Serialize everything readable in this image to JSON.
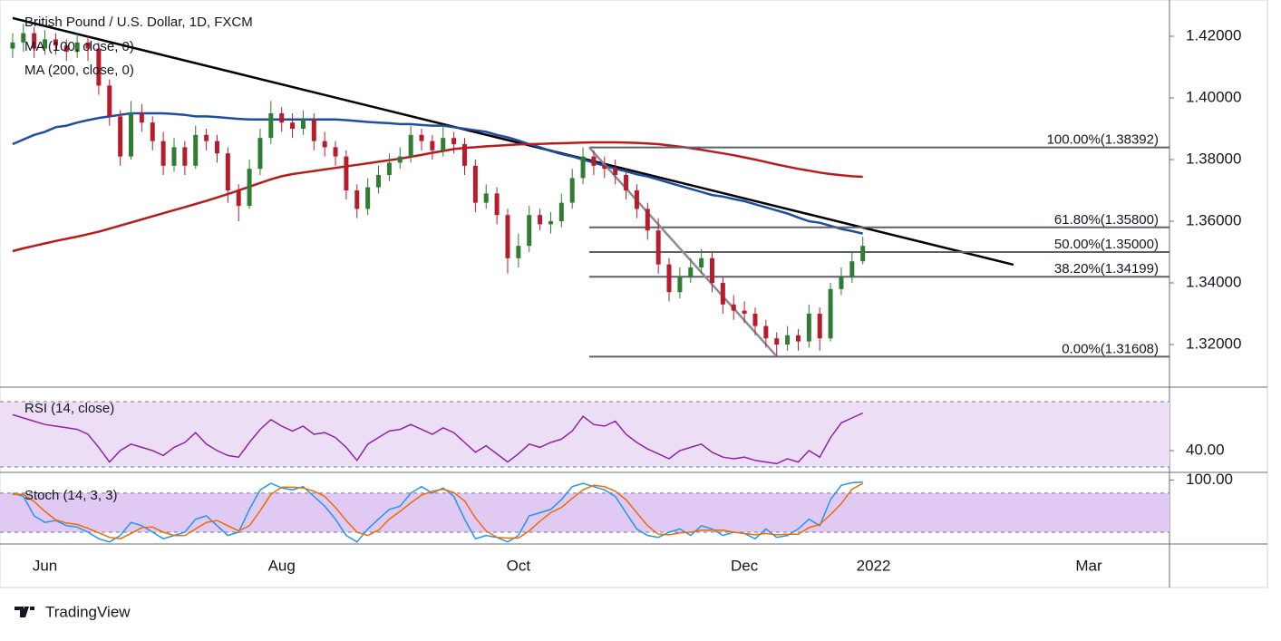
{
  "header": {
    "title": "British Pound / U.S. Dollar, 1D, FXCM"
  },
  "chart_data": [
    {
      "type": "candlestick",
      "categories": [
        null,
        null,
        null,
        "Jun",
        null,
        null,
        null,
        null,
        null,
        null,
        null,
        null,
        null,
        null,
        null,
        null,
        null,
        null,
        null,
        null,
        null,
        null,
        null,
        null,
        null,
        "Aug",
        null,
        null,
        null,
        null,
        null,
        null,
        null,
        null,
        null,
        null,
        null,
        null,
        null,
        null,
        null,
        null,
        null,
        null,
        null,
        null,
        null,
        "Oct",
        null,
        null,
        null,
        null,
        null,
        null,
        null,
        null,
        null,
        null,
        null,
        null,
        null,
        null,
        null,
        null,
        null,
        null,
        null,
        null,
        "Dec",
        null,
        null,
        null,
        null,
        null,
        null,
        null,
        null,
        null,
        null,
        null,
        "2022",
        null,
        null,
        null,
        null,
        null,
        null,
        null,
        null,
        null,
        null,
        null,
        null,
        null,
        null,
        null,
        null,
        null,
        null,
        null,
        "Mar",
        null,
        null,
        null,
        null,
        null,
        null,
        null
      ],
      "open": [
        1.416,
        1.418,
        1.421,
        1.416,
        1.419,
        1.417,
        1.415,
        1.418,
        1.416,
        1.404,
        1.394,
        1.381,
        1.395,
        1.392,
        1.386,
        1.378,
        1.384,
        1.378,
        1.388,
        1.386,
        1.382,
        1.37,
        1.365,
        1.377,
        1.387,
        1.395,
        1.392,
        1.39,
        1.393,
        1.386,
        1.384,
        1.381,
        1.37,
        1.364,
        1.371,
        1.375,
        1.379,
        1.381,
        1.388,
        1.386,
        1.383,
        1.387,
        1.385,
        1.378,
        1.366,
        1.369,
        1.362,
        1.348,
        1.352,
        1.362,
        1.359,
        1.36,
        1.366,
        1.374,
        1.381,
        1.378,
        1.377,
        1.375,
        1.37,
        1.364,
        1.357,
        1.346,
        1.337,
        1.342,
        1.345,
        1.348,
        1.34,
        1.333,
        1.331,
        1.33,
        1.326,
        1.322,
        1.32,
        1.323,
        1.321,
        1.33,
        1.322,
        1.338,
        1.342,
        1.347,
        null,
        null,
        null,
        null,
        null,
        null,
        null,
        null,
        null,
        null,
        null,
        null,
        null,
        null,
        null,
        null,
        null,
        null,
        null,
        null,
        null,
        null,
        null,
        null,
        null,
        null,
        null,
        null
      ],
      "high": [
        1.421,
        1.424,
        1.423,
        1.422,
        1.421,
        1.419,
        1.421,
        1.42,
        1.418,
        1.406,
        1.396,
        1.399,
        1.398,
        1.394,
        1.389,
        1.387,
        1.386,
        1.391,
        1.39,
        1.388,
        1.384,
        1.372,
        1.38,
        1.39,
        1.399,
        1.397,
        1.395,
        1.396,
        1.395,
        1.389,
        1.386,
        1.383,
        1.372,
        1.374,
        1.378,
        1.382,
        1.384,
        1.391,
        1.39,
        1.388,
        1.391,
        1.389,
        1.387,
        1.38,
        1.372,
        1.371,
        1.364,
        1.356,
        1.365,
        1.364,
        1.363,
        1.369,
        1.377,
        1.384,
        1.383,
        1.381,
        1.38,
        1.377,
        1.372,
        1.366,
        1.361,
        1.348,
        1.345,
        1.348,
        1.351,
        1.35,
        1.342,
        1.336,
        1.334,
        1.332,
        1.328,
        1.324,
        1.326,
        1.325,
        1.333,
        1.332,
        1.34,
        1.345,
        1.35,
        1.355,
        null,
        null,
        null,
        null,
        null,
        null,
        null,
        null,
        null,
        null,
        null,
        null,
        null,
        null,
        null,
        null,
        null,
        null,
        null,
        null,
        null,
        null,
        null,
        null,
        null,
        null,
        null,
        null
      ],
      "low": [
        1.413,
        1.415,
        1.413,
        1.414,
        1.414,
        1.412,
        1.413,
        1.412,
        1.401,
        1.391,
        1.378,
        1.38,
        1.389,
        1.383,
        1.375,
        1.376,
        1.375,
        1.377,
        1.383,
        1.379,
        1.366,
        1.36,
        1.364,
        1.375,
        1.385,
        1.389,
        1.387,
        1.388,
        1.383,
        1.381,
        1.378,
        1.367,
        1.361,
        1.362,
        1.369,
        1.373,
        1.377,
        1.379,
        1.383,
        1.38,
        1.381,
        1.382,
        1.375,
        1.363,
        1.364,
        1.359,
        1.343,
        1.345,
        1.35,
        1.357,
        1.356,
        1.358,
        1.364,
        1.372,
        1.375,
        1.374,
        1.372,
        1.367,
        1.361,
        1.354,
        1.343,
        1.334,
        1.335,
        1.34,
        1.343,
        1.337,
        1.33,
        1.328,
        1.327,
        1.323,
        1.319,
        1.316,
        1.318,
        1.318,
        1.319,
        1.318,
        1.321,
        1.336,
        1.34,
        1.346,
        null,
        null,
        null,
        null,
        null,
        null,
        null,
        null,
        null,
        null,
        null,
        null,
        null,
        null,
        null,
        null,
        null,
        null,
        null,
        null,
        null,
        null,
        null,
        null,
        null,
        null,
        null,
        null
      ],
      "close": [
        1.418,
        1.421,
        1.416,
        1.419,
        1.417,
        1.415,
        1.418,
        1.416,
        1.404,
        1.394,
        1.381,
        1.395,
        1.392,
        1.386,
        1.378,
        1.384,
        1.378,
        1.388,
        1.386,
        1.382,
        1.37,
        1.365,
        1.377,
        1.387,
        1.395,
        1.392,
        1.39,
        1.393,
        1.386,
        1.384,
        1.381,
        1.37,
        1.364,
        1.371,
        1.375,
        1.379,
        1.381,
        1.388,
        1.386,
        1.383,
        1.387,
        1.385,
        1.378,
        1.366,
        1.369,
        1.362,
        1.348,
        1.352,
        1.362,
        1.359,
        1.36,
        1.366,
        1.374,
        1.381,
        1.378,
        1.377,
        1.375,
        1.37,
        1.364,
        1.357,
        1.346,
        1.337,
        1.342,
        1.345,
        1.348,
        1.34,
        1.333,
        1.331,
        1.33,
        1.326,
        1.322,
        1.32,
        1.323,
        1.321,
        1.33,
        1.322,
        1.338,
        1.342,
        1.347,
        1.352,
        null,
        null,
        null,
        null,
        null,
        null,
        null,
        null,
        null,
        null,
        null,
        null,
        null,
        null,
        null,
        null,
        null,
        null,
        null,
        null,
        null,
        null,
        null,
        null,
        null,
        null,
        null,
        null
      ],
      "up_color": "#2e7d32",
      "down_color": "#b71c2c",
      "ylim": [
        1.30618,
        1.43176
      ],
      "yticks": [
        {
          "value": 1.32,
          "label": "1.32000"
        },
        {
          "value": 1.34,
          "label": "1.34000"
        },
        {
          "value": 1.36,
          "label": "1.36000"
        },
        {
          "value": 1.38,
          "label": "1.38000"
        },
        {
          "value": 1.4,
          "label": "1.40000"
        },
        {
          "value": 1.42,
          "label": "1.42000"
        }
      ],
      "series": [
        {
          "name": "MA (100, close, 0)",
          "color": "#1e4da1",
          "values": [
            1.385,
            1.3865,
            1.388,
            1.389,
            1.3905,
            1.391,
            1.392,
            1.3928,
            1.3935,
            1.394,
            1.3945,
            1.395,
            1.395,
            1.395,
            1.395,
            1.3948,
            1.3945,
            1.394,
            1.394,
            1.3938,
            1.3935,
            1.3932,
            1.393,
            1.393,
            1.393,
            1.393,
            1.393,
            1.393,
            1.393,
            1.393,
            1.393,
            1.3928,
            1.3925,
            1.3922,
            1.392,
            1.3918,
            1.3915,
            1.3915,
            1.3912,
            1.391,
            1.391,
            1.3905,
            1.39,
            1.3895,
            1.389,
            1.388,
            1.3872,
            1.3862,
            1.385,
            1.384,
            1.3828,
            1.3818,
            1.381,
            1.38,
            1.379,
            1.378,
            1.377,
            1.3762,
            1.3752,
            1.3745,
            1.3735,
            1.3725,
            1.3715,
            1.3705,
            1.3695,
            1.3685,
            1.368,
            1.3672,
            1.3665,
            1.3655,
            1.3645,
            1.3635,
            1.3625,
            1.3612,
            1.36,
            1.3595,
            1.3585,
            1.3575,
            1.3568,
            1.356,
            null,
            null,
            null,
            null,
            null,
            null,
            null,
            null,
            null,
            null,
            null,
            null,
            null,
            null,
            null,
            null,
            null,
            null,
            null,
            null,
            null,
            null,
            null,
            null,
            null,
            null,
            null,
            null
          ]
        },
        {
          "name": "MA (200, close, 0)",
          "color": "#b71c1c",
          "values": [
            1.3503,
            1.3512,
            1.352,
            1.3528,
            1.3536,
            1.3543,
            1.355,
            1.3558,
            1.3566,
            1.3576,
            1.3586,
            1.3596,
            1.3606,
            1.3616,
            1.3626,
            1.3636,
            1.3646,
            1.3656,
            1.3666,
            1.3677,
            1.3688,
            1.37,
            1.3712,
            1.3724,
            1.3736,
            1.3746,
            1.3753,
            1.3758,
            1.3763,
            1.3768,
            1.3773,
            1.3778,
            1.3783,
            1.3788,
            1.3793,
            1.3798,
            1.3803,
            1.3809,
            1.3815,
            1.3822,
            1.3828,
            1.3834,
            1.3838,
            1.384,
            1.3843,
            1.3845,
            1.3847,
            1.3849,
            1.385,
            1.3851,
            1.3852,
            1.3853,
            1.3854,
            1.3855,
            1.3856,
            1.3856,
            1.3856,
            1.3855,
            1.3854,
            1.3852,
            1.385,
            1.3846,
            1.3842,
            1.3837,
            1.3832,
            1.3826,
            1.382,
            1.3814,
            1.3807,
            1.38,
            1.3792,
            1.3784,
            1.3777,
            1.377,
            1.3764,
            1.3758,
            1.3753,
            1.3749,
            1.3746,
            1.3744,
            null,
            null,
            null,
            null,
            null,
            null,
            null,
            null,
            null,
            null,
            null,
            null,
            null,
            null,
            null,
            null,
            null,
            null,
            null,
            null,
            null,
            null,
            null,
            null,
            null,
            null,
            null,
            null
          ]
        }
      ],
      "trendline": {
        "color": "#000000",
        "values": [
          1.4259,
          1.3459
        ]
      },
      "fib_levels": [
        {
          "label": "100.00%(1.38392)",
          "value": 1.38392
        },
        {
          "label": "61.80%(1.35800)",
          "value": 1.358
        },
        {
          "label": "50.00%(1.35000)",
          "value": 1.35
        },
        {
          "label": "38.20%(1.34199)",
          "value": 1.34199
        },
        {
          "label": "0.00%(1.31608)",
          "value": 1.31608
        }
      ]
    },
    {
      "type": "line",
      "series": [
        {
          "name": "RSI (14, close)",
          "color": "#8e24aa",
          "values": [
            62,
            60,
            58,
            56,
            55,
            54,
            53,
            50,
            42,
            33,
            40,
            44,
            42,
            40,
            37,
            42,
            45,
            51,
            44,
            40,
            37,
            36,
            45,
            53,
            59,
            55,
            52,
            55,
            50,
            51,
            48,
            42,
            34,
            44,
            48,
            52,
            53,
            56,
            53,
            50,
            54,
            51,
            45,
            39,
            43,
            38,
            33,
            38,
            44,
            42,
            45,
            47,
            52,
            61,
            56,
            55,
            58,
            50,
            45,
            41,
            38,
            35,
            40,
            42,
            44,
            39,
            36,
            35,
            36,
            34,
            33,
            32,
            35,
            33,
            40,
            36,
            48,
            57,
            60,
            63
          ]
        }
      ],
      "ylim": [
        26.7,
        78.3
      ],
      "yticks": [
        {
          "value": 40,
          "label": "40.00"
        }
      ],
      "band": [
        30,
        70
      ],
      "band_color": "#ecdff5"
    },
    {
      "type": "line",
      "series": [
        {
          "name": "Stoch (14, 3, 3)",
          "color": "#2196f3",
          "values": [
            80,
            75,
            45,
            35,
            38,
            30,
            28,
            20,
            10,
            5,
            15,
            35,
            30,
            20,
            10,
            15,
            20,
            40,
            45,
            30,
            15,
            20,
            55,
            85,
            95,
            88,
            85,
            90,
            75,
            60,
            40,
            15,
            5,
            25,
            40,
            55,
            60,
            80,
            90,
            80,
            88,
            75,
            40,
            10,
            15,
            12,
            5,
            15,
            45,
            50,
            55,
            70,
            90,
            95,
            90,
            85,
            75,
            50,
            25,
            15,
            12,
            20,
            25,
            15,
            30,
            25,
            15,
            20,
            18,
            10,
            25,
            12,
            15,
            25,
            40,
            30,
            70,
            92,
            96,
            97
          ]
        },
        {
          "color": "#ef6c00",
          "values": [
            78,
            78,
            67,
            52,
            39,
            34,
            32,
            26,
            19,
            12,
            10,
            18,
            27,
            28,
            20,
            15,
            15,
            25,
            35,
            38,
            30,
            22,
            30,
            53,
            78,
            89,
            89,
            88,
            83,
            75,
            58,
            38,
            20,
            15,
            23,
            40,
            52,
            65,
            77,
            83,
            86,
            81,
            68,
            42,
            22,
            12,
            11,
            11,
            22,
            37,
            50,
            58,
            72,
            85,
            92,
            90,
            83,
            70,
            50,
            30,
            17,
            16,
            19,
            20,
            23,
            23,
            23,
            20,
            18,
            16,
            18,
            16,
            17,
            17,
            27,
            32,
            47,
            64,
            86,
            95
          ]
        }
      ],
      "ylim": [
        1.9,
        110.5
      ],
      "yticks": [
        {
          "value": 100,
          "label": "100.00"
        }
      ],
      "band": [
        20,
        80
      ],
      "band_color": "#e0c9f2"
    }
  ],
  "footer": {
    "brand": "TradingView"
  }
}
